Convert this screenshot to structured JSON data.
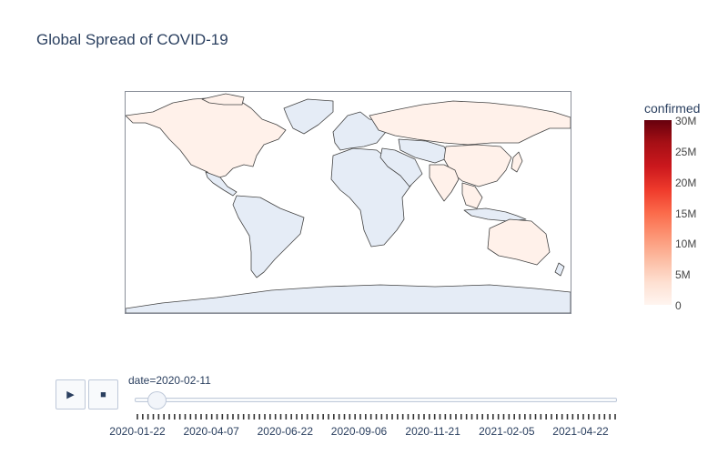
{
  "chart_data": {
    "type": "choropleth",
    "title": "Global Spread of COVID-19",
    "colorbar": {
      "title": "confirmed",
      "colorscale": "Reds",
      "range": [
        0,
        30000000
      ],
      "tick_labels": [
        "30M",
        "25M",
        "20M",
        "15M",
        "10M",
        "5M",
        "0"
      ]
    },
    "frame": "2020-02-11",
    "highlighted_countries": [
      "United States",
      "Canada",
      "China",
      "Russia",
      "Australia",
      "India",
      "Southeast Asia"
    ],
    "base_color": "#e5ecf6",
    "highlight_color": "#fff1ea",
    "border_color": "#444444"
  },
  "controls": {
    "play_symbol": "▶",
    "stop_symbol": "■"
  },
  "slider": {
    "label": "date=2020-02-11",
    "value_fraction": 0.028,
    "tick_labels": [
      "2020-01-22",
      "2020-04-07",
      "2020-06-22",
      "2020-09-06",
      "2020-11-21",
      "2021-02-05",
      "2021-04-22"
    ]
  }
}
